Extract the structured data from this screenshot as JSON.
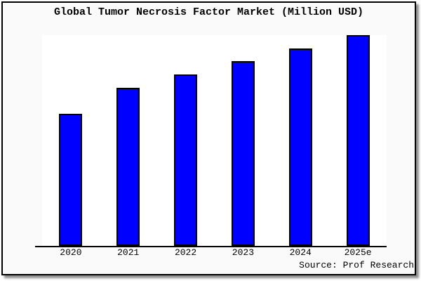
{
  "chart_data": {
    "type": "bar",
    "title": "Global Tumor Necrosis Factor Market (Million USD)",
    "categories": [
      "2020",
      "2021",
      "2022",
      "2023",
      "2024",
      "2025e"
    ],
    "values": [
      188,
      225,
      244,
      263,
      281,
      300
    ],
    "ylim": [
      0,
      300
    ],
    "xlabel": "",
    "ylabel": "",
    "y_axis_labels_visible": false,
    "grid": false,
    "legend": false,
    "bar_color": "#0000ff",
    "bar_border_color": "#000000"
  },
  "footer": {
    "source": "Source: Prof Research"
  },
  "colors": {
    "panel_background": "#fafafa",
    "plot_background": "#ffffff",
    "border": "#000000",
    "text": "#000000",
    "shadow": "#8f8f8f"
  }
}
